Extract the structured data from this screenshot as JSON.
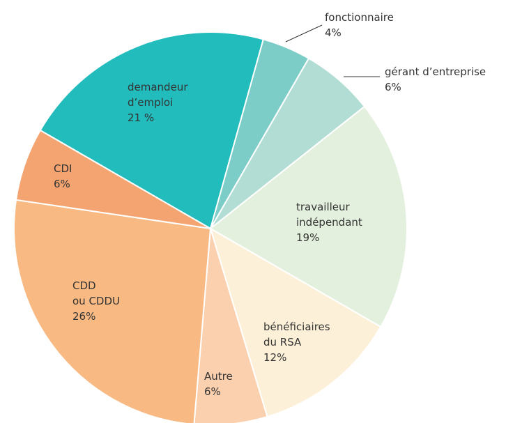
{
  "chart_data": {
    "type": "pie",
    "categories": [
      "demandeur\nd’emploi",
      "fonctionnaire",
      "gérant d’entreprise",
      "travailleur\nindépendant",
      "bénéficiaires\ndu RSA",
      "Autre",
      "CDD\nou CDDU",
      "CDI"
    ],
    "values": [
      21,
      4,
      6,
      19,
      12,
      6,
      26,
      6
    ],
    "value_labels": [
      "21 %",
      "4%",
      "6%",
      "19%",
      "12%",
      "6%",
      "26%",
      "6%"
    ],
    "colors": [
      "#22bcbc",
      "#7ccdc8",
      "#b2ddd5",
      "#e4f0de",
      "#fdf0d8",
      "#fbd0ae",
      "#f8b982",
      "#f4a470"
    ]
  }
}
